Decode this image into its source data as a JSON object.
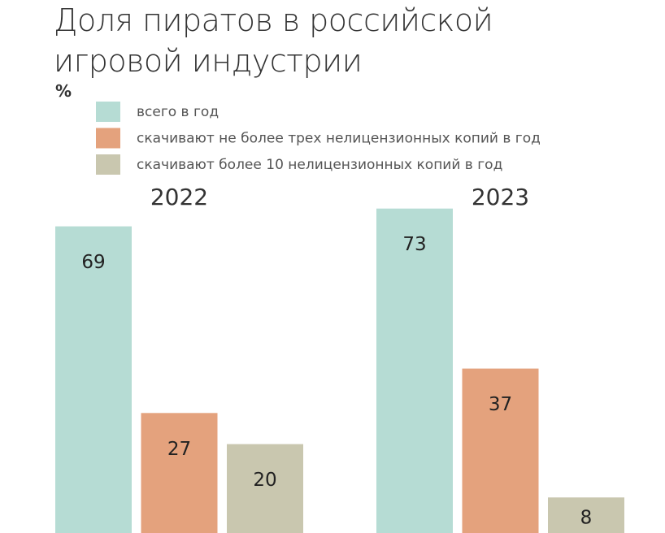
{
  "chart_data": {
    "type": "bar",
    "title": "Доля пиратов в российской игровой индустрии",
    "ylabel": "%",
    "categories": [
      "2022",
      "2023"
    ],
    "series": [
      {
        "name": "всего в год",
        "color": "#b6dcd4",
        "values": [
          69,
          73
        ]
      },
      {
        "name": "скачивают не более трех нелицензионных копий в год",
        "color": "#e4a27d",
        "values": [
          27,
          37
        ]
      },
      {
        "name": "скачивают более 10 нелицензионных копий в год",
        "color": "#c9c7af",
        "values": [
          20,
          8
        ]
      }
    ],
    "legend": "top-left"
  }
}
